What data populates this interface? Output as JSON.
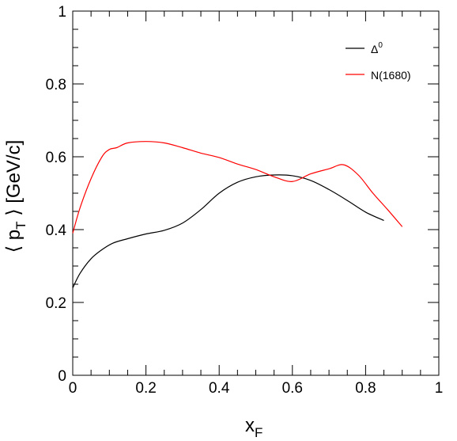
{
  "chart_data": {
    "type": "line",
    "title": "",
    "xlabel": "x",
    "xlabel_sub": "F",
    "ylabel": "⟨ p",
    "ylabel_sub": "T",
    "ylabel_rest": " ⟩ [GeV/c]",
    "xlim": [
      0,
      1
    ],
    "ylim": [
      0,
      1
    ],
    "x_ticks": [
      {
        "value": 0,
        "label": "0"
      },
      {
        "value": 0.2,
        "label": "0.2"
      },
      {
        "value": 0.4,
        "label": "0.4"
      },
      {
        "value": 0.6,
        "label": "0.6"
      },
      {
        "value": 0.8,
        "label": "0.8"
      },
      {
        "value": 1,
        "label": "1"
      }
    ],
    "y_ticks": [
      {
        "value": 0,
        "label": "0"
      },
      {
        "value": 0.2,
        "label": "0.2"
      },
      {
        "value": 0.4,
        "label": "0.4"
      },
      {
        "value": 0.6,
        "label": "0.6"
      },
      {
        "value": 0.8,
        "label": "0.8"
      },
      {
        "value": 1,
        "label": "1"
      }
    ],
    "grid": false,
    "legend_position": "top-right",
    "series": [
      {
        "name": "Δ",
        "name_sup": "0",
        "color": "#000000",
        "x": [
          0.0,
          0.02,
          0.05,
          0.08,
          0.11,
          0.15,
          0.2,
          0.25,
          0.3,
          0.35,
          0.4,
          0.45,
          0.5,
          0.55,
          0.6,
          0.65,
          0.7,
          0.75,
          0.8,
          0.85
        ],
        "y": [
          0.24,
          0.28,
          0.32,
          0.345,
          0.363,
          0.375,
          0.388,
          0.398,
          0.418,
          0.455,
          0.5,
          0.53,
          0.545,
          0.55,
          0.548,
          0.535,
          0.51,
          0.48,
          0.448,
          0.425
        ]
      },
      {
        "name": "N(1680)",
        "color": "#ff0000",
        "x": [
          0.0,
          0.02,
          0.05,
          0.08,
          0.1,
          0.12,
          0.15,
          0.2,
          0.25,
          0.3,
          0.35,
          0.4,
          0.45,
          0.5,
          0.55,
          0.6,
          0.65,
          0.7,
          0.74,
          0.78,
          0.82,
          0.86,
          0.9
        ],
        "y": [
          0.39,
          0.46,
          0.54,
          0.6,
          0.62,
          0.625,
          0.638,
          0.642,
          0.638,
          0.625,
          0.61,
          0.598,
          0.58,
          0.565,
          0.545,
          0.532,
          0.553,
          0.567,
          0.578,
          0.55,
          0.5,
          0.455,
          0.408
        ]
      }
    ]
  }
}
